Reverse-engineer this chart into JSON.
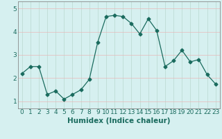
{
  "xlabel": "Humidex (Indice chaleur)",
  "x": [
    0,
    1,
    2,
    3,
    4,
    5,
    6,
    7,
    8,
    9,
    10,
    11,
    12,
    13,
    14,
    15,
    16,
    17,
    18,
    19,
    20,
    21,
    22,
    23
  ],
  "y": [
    2.2,
    2.5,
    2.5,
    1.3,
    1.45,
    1.1,
    1.3,
    1.5,
    1.95,
    3.55,
    4.65,
    4.7,
    4.65,
    4.35,
    3.9,
    4.55,
    4.05,
    2.5,
    2.75,
    3.2,
    2.7,
    2.8,
    2.15,
    1.75
  ],
  "line_color": "#1a6b5e",
  "marker": "D",
  "marker_size": 2.5,
  "bg_color": "#d6f0f0",
  "grid_color_v": "#b8d8d0",
  "grid_color_h": "#e8b8b8",
  "ylim": [
    0.7,
    5.3
  ],
  "xlim": [
    -0.5,
    23.5
  ],
  "yticks": [
    1,
    2,
    3,
    4,
    5
  ],
  "xticks": [
    0,
    1,
    2,
    3,
    4,
    5,
    6,
    7,
    8,
    9,
    10,
    11,
    12,
    13,
    14,
    15,
    16,
    17,
    18,
    19,
    20,
    21,
    22,
    23
  ],
  "tick_fontsize": 6.5,
  "xlabel_fontsize": 7.5,
  "linewidth": 0.9
}
